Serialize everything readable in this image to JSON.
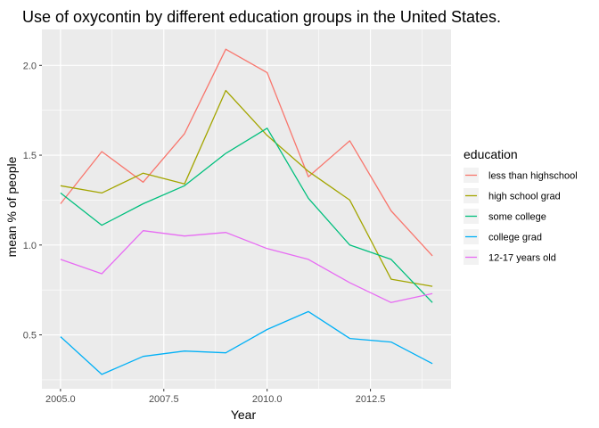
{
  "chart_data": {
    "type": "line",
    "title": "Use of oxycontin by different education groups in the United States.",
    "xlabel": "Year",
    "ylabel": "mean % of people",
    "xlim": [
      2004.55,
      2014.45
    ],
    "ylim": [
      0.2,
      2.2
    ],
    "xticks": [
      2005.0,
      2007.5,
      2010.0,
      2012.5
    ],
    "xtick_labels": [
      "2005.0",
      "2007.5",
      "2010.0",
      "2012.5"
    ],
    "yticks": [
      0.5,
      1.0,
      1.5,
      2.0
    ],
    "ytick_labels": [
      "0.5",
      "1.0",
      "1.5",
      "2.0"
    ],
    "grid": true,
    "legend_position": "right",
    "legend_title": "education",
    "x": [
      2005,
      2006,
      2007,
      2008,
      2009,
      2010,
      2011,
      2012,
      2013,
      2014
    ],
    "series": [
      {
        "name": "less than highschool",
        "color": "#F8766D",
        "values": [
          1.23,
          1.52,
          1.35,
          1.62,
          2.09,
          1.96,
          1.38,
          1.58,
          1.19,
          0.94
        ]
      },
      {
        "name": "high school grad",
        "color": "#A3A500",
        "values": [
          1.33,
          1.29,
          1.4,
          1.34,
          1.86,
          1.61,
          1.41,
          1.25,
          0.81,
          0.77
        ]
      },
      {
        "name": "some college",
        "color": "#00BF7D",
        "values": [
          1.29,
          1.11,
          1.23,
          1.33,
          1.51,
          1.65,
          1.26,
          1.0,
          0.92,
          0.68
        ]
      },
      {
        "name": "college grad",
        "color": "#00B0F6",
        "values": [
          0.49,
          0.28,
          0.38,
          0.41,
          0.4,
          0.53,
          0.63,
          0.48,
          0.46,
          0.34
        ]
      },
      {
        "name": "12-17 years old",
        "color": "#E76BF3",
        "values": [
          0.92,
          0.84,
          1.08,
          1.05,
          1.07,
          0.98,
          0.92,
          0.79,
          0.68,
          0.73
        ]
      }
    ]
  }
}
